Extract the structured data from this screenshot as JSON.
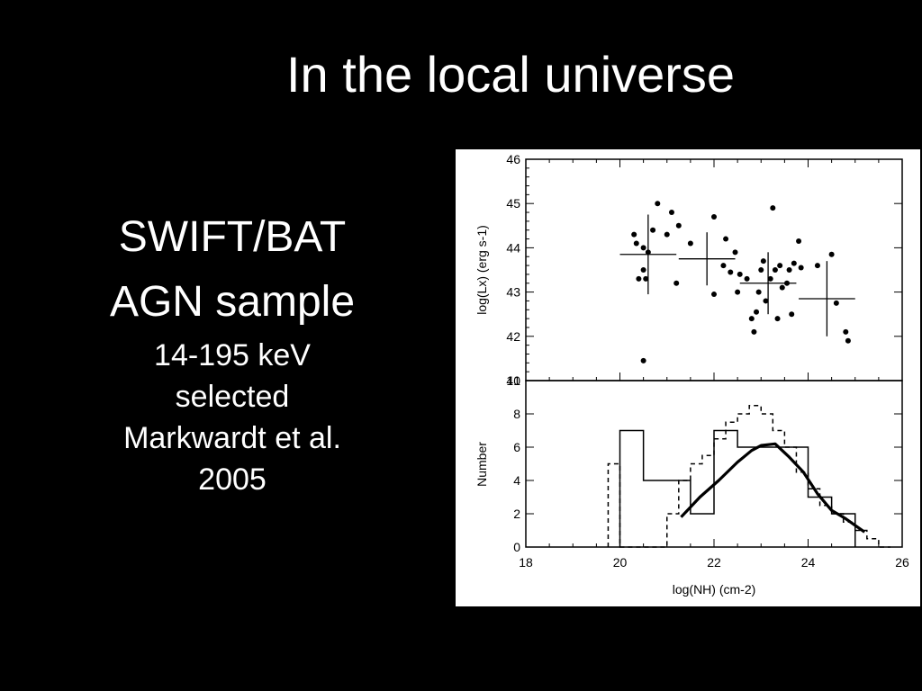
{
  "slide": {
    "title": "In the local universe",
    "sidebar": {
      "line1": "SWIFT/BAT",
      "line2": "AGN sample",
      "line3": "14-195 keV",
      "line4": "selected",
      "line5": "Markwardt et al.",
      "line6": "2005"
    }
  },
  "chart_data": [
    {
      "type": "scatter",
      "ylabel": "log(Lx) (erg s-1)",
      "xlabel": "",
      "xlim": [
        18,
        26
      ],
      "ylim": [
        41,
        46
      ],
      "yticks": [
        "41",
        "42",
        "43",
        "44",
        "45",
        "46"
      ],
      "points": [
        {
          "x": 20.3,
          "y": 44.3
        },
        {
          "x": 20.35,
          "y": 44.1
        },
        {
          "x": 20.4,
          "y": 43.3
        },
        {
          "x": 20.5,
          "y": 44.0
        },
        {
          "x": 20.5,
          "y": 43.5
        },
        {
          "x": 20.55,
          "y": 43.3
        },
        {
          "x": 20.6,
          "y": 43.9
        },
        {
          "x": 20.7,
          "y": 44.4
        },
        {
          "x": 20.8,
          "y": 45.0
        },
        {
          "x": 21.0,
          "y": 44.3
        },
        {
          "x": 21.1,
          "y": 44.8
        },
        {
          "x": 21.2,
          "y": 43.2
        },
        {
          "x": 21.25,
          "y": 44.5
        },
        {
          "x": 20.5,
          "y": 41.45
        },
        {
          "x": 21.5,
          "y": 44.1
        },
        {
          "x": 22.0,
          "y": 44.7
        },
        {
          "x": 22.0,
          "y": 42.95
        },
        {
          "x": 22.2,
          "y": 43.6
        },
        {
          "x": 22.25,
          "y": 44.2
        },
        {
          "x": 22.35,
          "y": 43.45
        },
        {
          "x": 22.45,
          "y": 43.9
        },
        {
          "x": 22.5,
          "y": 43.0
        },
        {
          "x": 22.55,
          "y": 43.4
        },
        {
          "x": 22.7,
          "y": 43.3
        },
        {
          "x": 22.8,
          "y": 42.4
        },
        {
          "x": 22.85,
          "y": 42.1
        },
        {
          "x": 22.9,
          "y": 42.55
        },
        {
          "x": 22.95,
          "y": 43.0
        },
        {
          "x": 23.0,
          "y": 43.5
        },
        {
          "x": 23.05,
          "y": 43.7
        },
        {
          "x": 23.1,
          "y": 42.8
        },
        {
          "x": 23.2,
          "y": 43.3
        },
        {
          "x": 23.25,
          "y": 44.9
        },
        {
          "x": 23.3,
          "y": 43.5
        },
        {
          "x": 23.35,
          "y": 42.4
        },
        {
          "x": 23.4,
          "y": 43.6
        },
        {
          "x": 23.45,
          "y": 43.1
        },
        {
          "x": 23.55,
          "y": 43.2
        },
        {
          "x": 23.6,
          "y": 43.5
        },
        {
          "x": 23.65,
          "y": 42.5
        },
        {
          "x": 23.7,
          "y": 43.65
        },
        {
          "x": 23.8,
          "y": 44.15
        },
        {
          "x": 23.85,
          "y": 43.55
        },
        {
          "x": 24.2,
          "y": 43.6
        },
        {
          "x": 24.5,
          "y": 43.85
        },
        {
          "x": 24.6,
          "y": 42.75
        },
        {
          "x": 24.8,
          "y": 42.1
        },
        {
          "x": 24.85,
          "y": 41.9
        }
      ],
      "binned_means": [
        {
          "x": 20.6,
          "xerr": 0.6,
          "y": 43.85,
          "yerr": 0.9
        },
        {
          "x": 21.85,
          "xerr": 0.6,
          "y": 43.75,
          "yerr": 0.6
        },
        {
          "x": 23.15,
          "xerr": 0.6,
          "y": 43.2,
          "yerr": 0.7
        },
        {
          "x": 24.4,
          "xerr": 0.6,
          "y": 42.85,
          "yerr": 0.85
        }
      ]
    },
    {
      "type": "line",
      "xlabel": "log(NH) (cm-2)",
      "ylabel": "Number",
      "xlim": [
        18,
        26
      ],
      "ylim": [
        0,
        10
      ],
      "xticks": [
        "18",
        "20",
        "22",
        "24",
        "26"
      ],
      "yticks": [
        "0",
        "2",
        "4",
        "6",
        "8",
        "10"
      ],
      "series": [
        {
          "style": "solid-histogram",
          "edges": [
            20.0,
            20.5,
            21.0,
            21.5,
            22.0,
            22.5,
            23.0,
            23.5,
            24.0,
            24.5,
            25.0
          ],
          "values": [
            7,
            4,
            4,
            2,
            7,
            6,
            6,
            6,
            3,
            2
          ]
        },
        {
          "style": "dashed-histogram",
          "edges": [
            19.75,
            20.0,
            20.25,
            20.5,
            20.75,
            21.0,
            21.25,
            21.5,
            21.75,
            22.0,
            22.25,
            22.5,
            22.75,
            23.0,
            23.25,
            23.5,
            23.75,
            24.0,
            24.25,
            24.5,
            24.75,
            25.0,
            25.25,
            25.5,
            25.75
          ],
          "values": [
            5,
            0,
            0,
            0,
            0,
            2,
            4,
            5,
            5.5,
            6.5,
            7.5,
            8,
            8.5,
            8,
            7,
            6,
            4.5,
            3.5,
            2.5,
            2,
            1.5,
            1,
            0.5,
            0
          ]
        },
        {
          "style": "thick-model-curve",
          "x": [
            21.3,
            21.7,
            22.1,
            22.5,
            22.8,
            23.0,
            23.3,
            23.6,
            23.9,
            24.2,
            24.5,
            24.8,
            25.2
          ],
          "y": [
            1.8,
            3.0,
            4.0,
            5.1,
            5.8,
            6.1,
            6.2,
            5.4,
            4.5,
            3.2,
            2.2,
            1.7,
            0.9
          ]
        }
      ]
    }
  ]
}
